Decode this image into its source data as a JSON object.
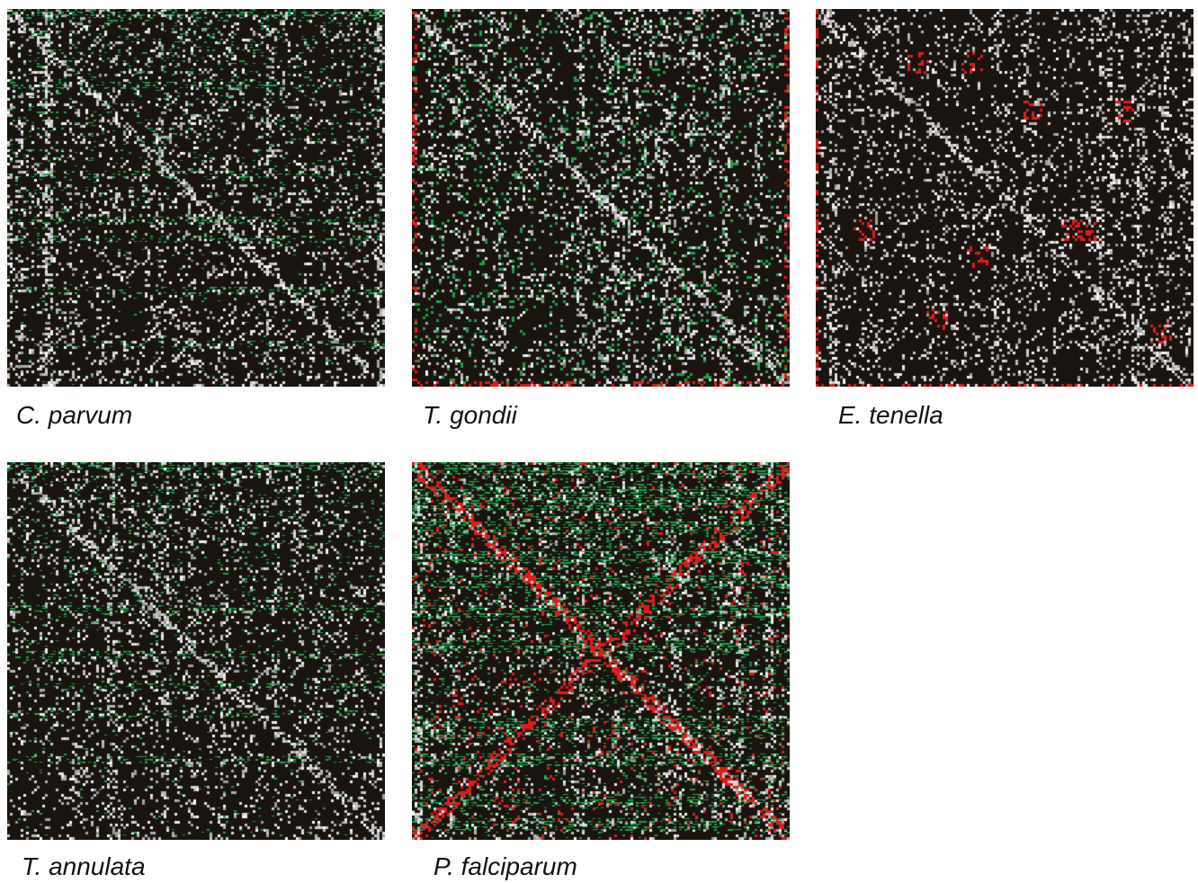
{
  "figure": {
    "panels": [
      {
        "species": "C. parvum",
        "pattern": "green-bands-upper",
        "colors": {
          "base": "#1a1410",
          "speckle": "#e8e8e8",
          "highlight_green": "#1f9e4a",
          "highlight_red": "#e01b1b"
        }
      },
      {
        "species": "T. gondii",
        "pattern": "speckled-green",
        "colors": {
          "base": "#1a1410",
          "speckle": "#e8e8e8",
          "highlight_green": "#1f9e4a",
          "highlight_red": "#e01b1b"
        }
      },
      {
        "species": "E. tenella",
        "pattern": "red-blocks",
        "colors": {
          "base": "#1a1410",
          "speckle": "#e8e8e8",
          "highlight_green": "#1f9e4a",
          "highlight_red": "#e01b1b"
        }
      },
      {
        "species": "T. annulata",
        "pattern": "green-bands-upper",
        "colors": {
          "base": "#1a1410",
          "speckle": "#e8e8e8",
          "highlight_green": "#1f9e4a",
          "highlight_red": "#e01b1b"
        }
      },
      {
        "species": "P. falciparum",
        "pattern": "heavy-green-red",
        "colors": {
          "base": "#1a1410",
          "speckle": "#e8e8e8",
          "highlight_green": "#1f9e4a",
          "highlight_red": "#e01b1b"
        }
      }
    ]
  }
}
